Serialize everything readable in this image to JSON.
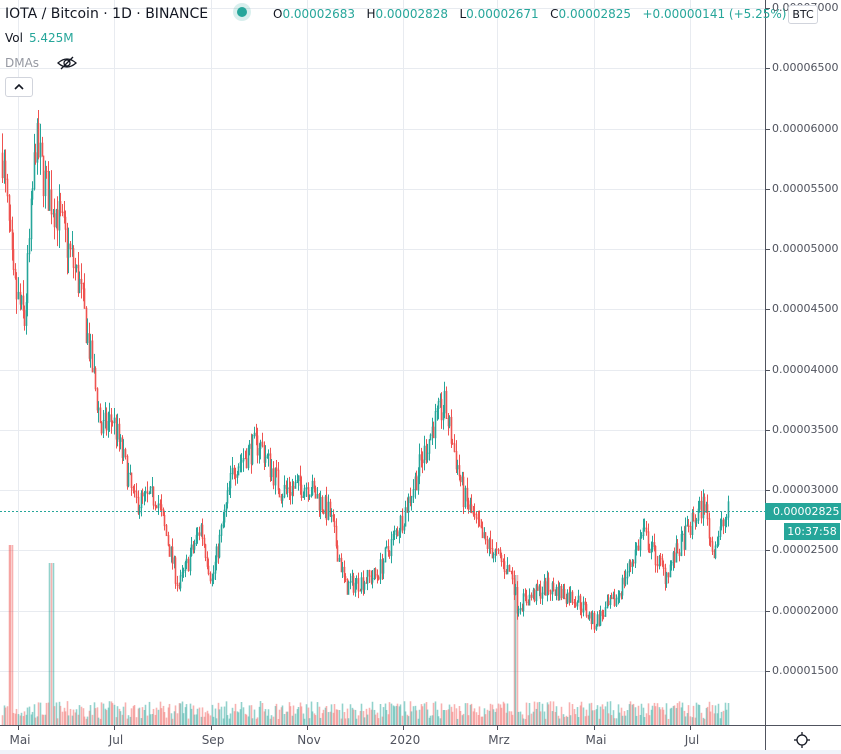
{
  "header": {
    "symbol": "IOTA / Bitcoin · 1D · BINANCE",
    "ohlc": {
      "open_label": "O",
      "open": "0.00002683",
      "high_label": "H",
      "high": "0.00002828",
      "low_label": "L",
      "low": "0.00002671",
      "close_label": "C",
      "close": "0.00002825",
      "change": "+0.00000141 (+5.25%)"
    },
    "volume_label": "Vol",
    "volume_value": "5.425M",
    "indicator_label": "DMAs"
  },
  "price_axis": {
    "currency_badge": "BTC",
    "labels": [
      "0.00007000",
      "0.00006500",
      "0.00006000",
      "0.00005500",
      "0.00005000",
      "0.00004500",
      "0.00004000",
      "0.00003500",
      "0.00003000",
      "0.00002500",
      "0.00002000",
      "0.00001500"
    ],
    "last_price": "0.00002825",
    "countdown": "10:37:58"
  },
  "time_axis": {
    "labels": [
      "Mai",
      "Jul",
      "Sep",
      "Nov",
      "2020",
      "Mrz",
      "Mai",
      "Jul"
    ]
  },
  "colors": {
    "up": "#26a69a",
    "down": "#ef5350",
    "grid": "#e8ebf0",
    "axis": "#50535e",
    "last_price_line": "#26a69a"
  },
  "chart_data": {
    "type": "candlestick",
    "title": "IOTA / Bitcoin · 1D · BINANCE",
    "xlabel": "",
    "ylabel": "BTC",
    "ylim": [
      1.1e-05,
      7.05e-05
    ],
    "x_ticks": [
      "Mai",
      "Jul",
      "Sep",
      "Nov",
      "2020",
      "Mrz",
      "Mai",
      "Jul"
    ],
    "y_ticks": [
      1.5e-05,
      2e-05,
      2.5e-05,
      3e-05,
      3.5e-05,
      4e-05,
      4.5e-05,
      5e-05,
      5.5e-05,
      6e-05,
      6.5e-05,
      7e-05
    ],
    "last_close": 2.825e-05,
    "close_path_approx": [
      {
        "date": "2019-04-21",
        "close": 5.8e-05
      },
      {
        "date": "2019-04-28",
        "close": 4.7e-05
      },
      {
        "date": "2019-05-05",
        "close": 4.4e-05
      },
      {
        "date": "2019-05-12",
        "close": 5.9e-05
      },
      {
        "date": "2019-05-19",
        "close": 5.5e-05
      },
      {
        "date": "2019-05-26",
        "close": 5.3e-05
      },
      {
        "date": "2019-06-09",
        "close": 4.7e-05
      },
      {
        "date": "2019-06-23",
        "close": 3.5e-05
      },
      {
        "date": "2019-06-30",
        "close": 3.6e-05
      },
      {
        "date": "2019-07-14",
        "close": 2.9e-05
      },
      {
        "date": "2019-07-28",
        "close": 2.95e-05
      },
      {
        "date": "2019-08-11",
        "close": 2.2e-05
      },
      {
        "date": "2019-08-25",
        "close": 2.7e-05
      },
      {
        "date": "2019-09-01",
        "close": 2.25e-05
      },
      {
        "date": "2019-09-15",
        "close": 3.2e-05
      },
      {
        "date": "2019-10-01",
        "close": 3.4e-05
      },
      {
        "date": "2019-10-15",
        "close": 3e-05
      },
      {
        "date": "2019-11-01",
        "close": 3.05e-05
      },
      {
        "date": "2019-11-15",
        "close": 2.8e-05
      },
      {
        "date": "2019-11-25",
        "close": 2.2e-05
      },
      {
        "date": "2019-12-15",
        "close": 2.3e-05
      },
      {
        "date": "2020-01-01",
        "close": 2.8e-05
      },
      {
        "date": "2020-01-20",
        "close": 3.55e-05
      },
      {
        "date": "2020-01-27",
        "close": 3.7e-05
      },
      {
        "date": "2020-02-08",
        "close": 2.95e-05
      },
      {
        "date": "2020-02-20",
        "close": 2.6e-05
      },
      {
        "date": "2020-03-10",
        "close": 2.3e-05
      },
      {
        "date": "2020-03-13",
        "close": 2.05e-05
      },
      {
        "date": "2020-04-01",
        "close": 2.2e-05
      },
      {
        "date": "2020-04-20",
        "close": 2.1e-05
      },
      {
        "date": "2020-05-01",
        "close": 1.9e-05
      },
      {
        "date": "2020-05-15",
        "close": 2.1e-05
      },
      {
        "date": "2020-06-01",
        "close": 2.65e-05
      },
      {
        "date": "2020-06-15",
        "close": 2.3e-05
      },
      {
        "date": "2020-07-01",
        "close": 2.7e-05
      },
      {
        "date": "2020-07-10",
        "close": 2.9e-05
      },
      {
        "date": "2020-07-15",
        "close": 2.5e-05
      },
      {
        "date": "2020-07-25",
        "close": 2.82e-05
      }
    ],
    "notable": {
      "max_high": 6.5e-05,
      "early_spike_high": 6.3e-05,
      "feb_2020_high": 3.98e-05,
      "march_2020_low": 1.5e-05,
      "may_2020_low": 1.83e-05,
      "jul_2020_high": 3e-05
    },
    "volume": {
      "label": "Vol",
      "last": "5.425M",
      "spikes": [
        {
          "date": "2019-04-26",
          "rel": 1.0
        },
        {
          "date": "2019-05-22",
          "rel": 0.85
        },
        {
          "date": "2020-03-12",
          "rel": 0.75
        }
      ]
    }
  }
}
